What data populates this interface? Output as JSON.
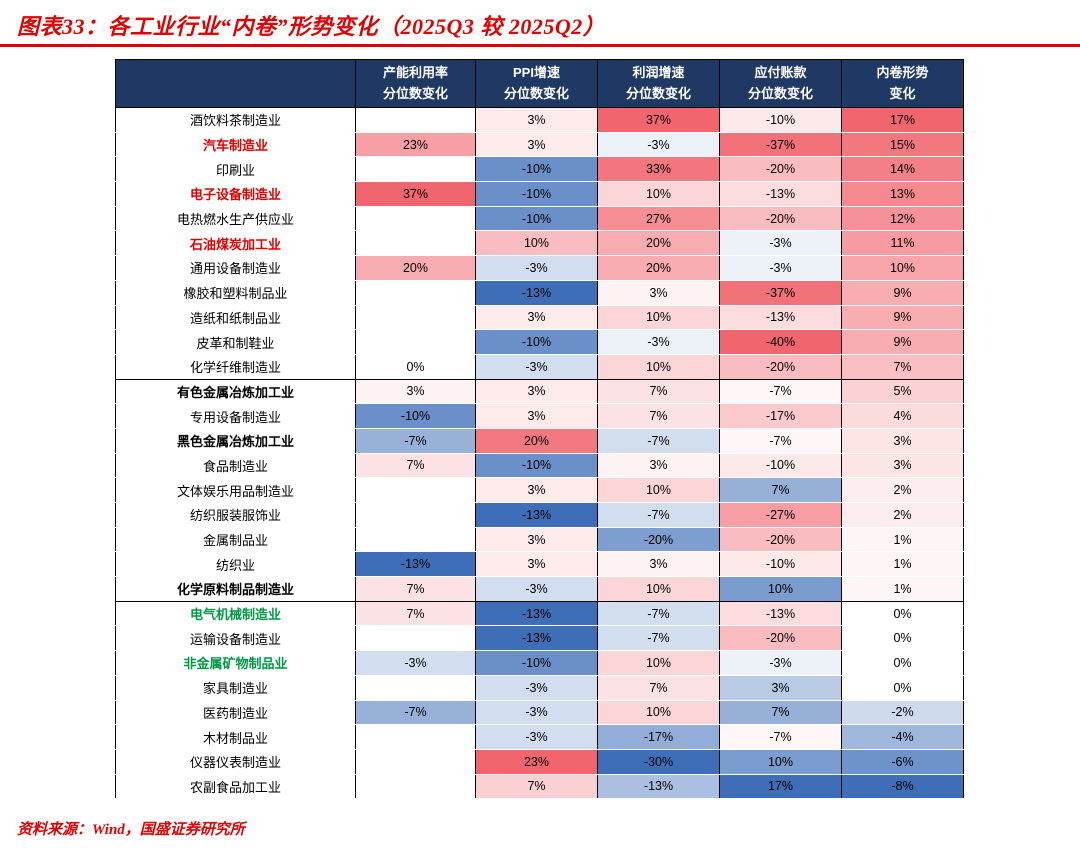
{
  "title": "图表33：各工业行业“内卷”形势变化（2025Q3 较 2025Q2）",
  "source": "资料来源：Wind，国盛证券研究所",
  "colors": {
    "accent_red": "#e00000",
    "header_bg": "#1F3864",
    "label_red": "#e00000",
    "label_green": "#009944",
    "heat_red": "#f1656e",
    "heat_blue": "#3e6eb8",
    "cell_blank": "#ffffff",
    "header_text": "#ffffff",
    "cell_text": "#000000"
  },
  "chart_data": {
    "type": "heatmap",
    "title": "图表33：各工业行业“内卷”形势变化（2025Q3 较 2025Q2）",
    "source": "资料来源：Wind，国盛证券研究所",
    "value_unit": "%",
    "headers": [
      {
        "line1": "",
        "line2": ""
      },
      {
        "line1": "产能利用率",
        "line2": "分位数变化"
      },
      {
        "line1": "PPI增速",
        "line2": "分位数变化"
      },
      {
        "line1": "利润增速",
        "line2": "分位数变化"
      },
      {
        "line1": "应付账款",
        "line2": "分位数变化"
      },
      {
        "line1": "内卷形势",
        "line2": "变化"
      }
    ],
    "columns": [
      "产能利用率分位数变化",
      "PPI增速分位数变化",
      "利润增速分位数变化",
      "应付账款分位数变化",
      "内卷形势变化"
    ],
    "color_mapping": {
      "note": "red = worsening involution direction, blue = opposite; accounts-payable column inverted",
      "midpoints": [
        0,
        0,
        0,
        -5,
        0
      ],
      "inverted": [
        false,
        false,
        false,
        true,
        false
      ]
    },
    "rows": [
      {
        "name": "酒饮料茶制造业",
        "style": "normal",
        "values": [
          null,
          3,
          37,
          -10,
          17
        ]
      },
      {
        "name": "汽车制造业",
        "style": "red",
        "values": [
          23,
          3,
          -3,
          -37,
          15
        ]
      },
      {
        "name": "印刷业",
        "style": "normal",
        "values": [
          null,
          -10,
          33,
          -20,
          14
        ]
      },
      {
        "name": "电子设备制造业",
        "style": "red",
        "values": [
          37,
          -10,
          10,
          -13,
          13
        ]
      },
      {
        "name": "电热燃水生产供应业",
        "style": "normal",
        "values": [
          null,
          -10,
          27,
          -20,
          12
        ]
      },
      {
        "name": "石油煤炭加工业",
        "style": "red",
        "values": [
          null,
          10,
          20,
          -3,
          11
        ]
      },
      {
        "name": "通用设备制造业",
        "style": "normal",
        "values": [
          20,
          -3,
          20,
          -3,
          10
        ]
      },
      {
        "name": "橡胶和塑料制品业",
        "style": "normal",
        "values": [
          null,
          -13,
          3,
          -37,
          9
        ]
      },
      {
        "name": "造纸和纸制品业",
        "style": "normal",
        "values": [
          null,
          3,
          10,
          -13,
          9
        ]
      },
      {
        "name": "皮革和制鞋业",
        "style": "normal",
        "values": [
          null,
          -10,
          -3,
          -40,
          9
        ]
      },
      {
        "name": "化学纤维制造业",
        "style": "normal",
        "values": [
          0,
          -3,
          10,
          -20,
          7
        ],
        "group_end": true
      },
      {
        "name": "有色金属冶炼加工业",
        "style": "bold",
        "values": [
          3,
          3,
          7,
          -7,
          5
        ]
      },
      {
        "name": "专用设备制造业",
        "style": "normal",
        "values": [
          -10,
          3,
          7,
          -17,
          4
        ]
      },
      {
        "name": "黑色金属冶炼加工业",
        "style": "bold",
        "values": [
          -7,
          20,
          -7,
          -7,
          3
        ]
      },
      {
        "name": "食品制造业",
        "style": "normal",
        "values": [
          7,
          -10,
          3,
          -10,
          3
        ]
      },
      {
        "name": "文体娱乐用品制造业",
        "style": "normal",
        "values": [
          null,
          3,
          10,
          7,
          2
        ]
      },
      {
        "name": "纺织服装服饰业",
        "style": "normal",
        "values": [
          null,
          -13,
          -7,
          -27,
          2
        ]
      },
      {
        "name": "金属制品业",
        "style": "normal",
        "values": [
          null,
          3,
          -20,
          -20,
          1
        ]
      },
      {
        "name": "纺织业",
        "style": "normal",
        "values": [
          -13,
          3,
          3,
          -10,
          1
        ]
      },
      {
        "name": "化学原料制品制造业",
        "style": "bold",
        "values": [
          7,
          -3,
          10,
          10,
          1
        ],
        "group_end": true
      },
      {
        "name": "电气机械制造业",
        "style": "green",
        "values": [
          7,
          -13,
          -7,
          -13,
          0
        ]
      },
      {
        "name": "运输设备制造业",
        "style": "normal",
        "values": [
          null,
          -13,
          -7,
          -20,
          0
        ]
      },
      {
        "name": "非金属矿物制品业",
        "style": "green",
        "values": [
          -3,
          -10,
          10,
          -3,
          0
        ]
      },
      {
        "name": "家具制造业",
        "style": "normal",
        "values": [
          null,
          -3,
          7,
          3,
          0
        ]
      },
      {
        "name": "医药制造业",
        "style": "normal",
        "values": [
          -7,
          -3,
          10,
          7,
          -2
        ]
      },
      {
        "name": "木材制品业",
        "style": "normal",
        "values": [
          null,
          -3,
          -17,
          -7,
          -4
        ]
      },
      {
        "name": "仪器仪表制造业",
        "style": "normal",
        "values": [
          null,
          23,
          -30,
          10,
          -6
        ]
      },
      {
        "name": "农副食品加工业",
        "style": "normal",
        "values": [
          null,
          7,
          -13,
          17,
          -8
        ]
      }
    ]
  }
}
